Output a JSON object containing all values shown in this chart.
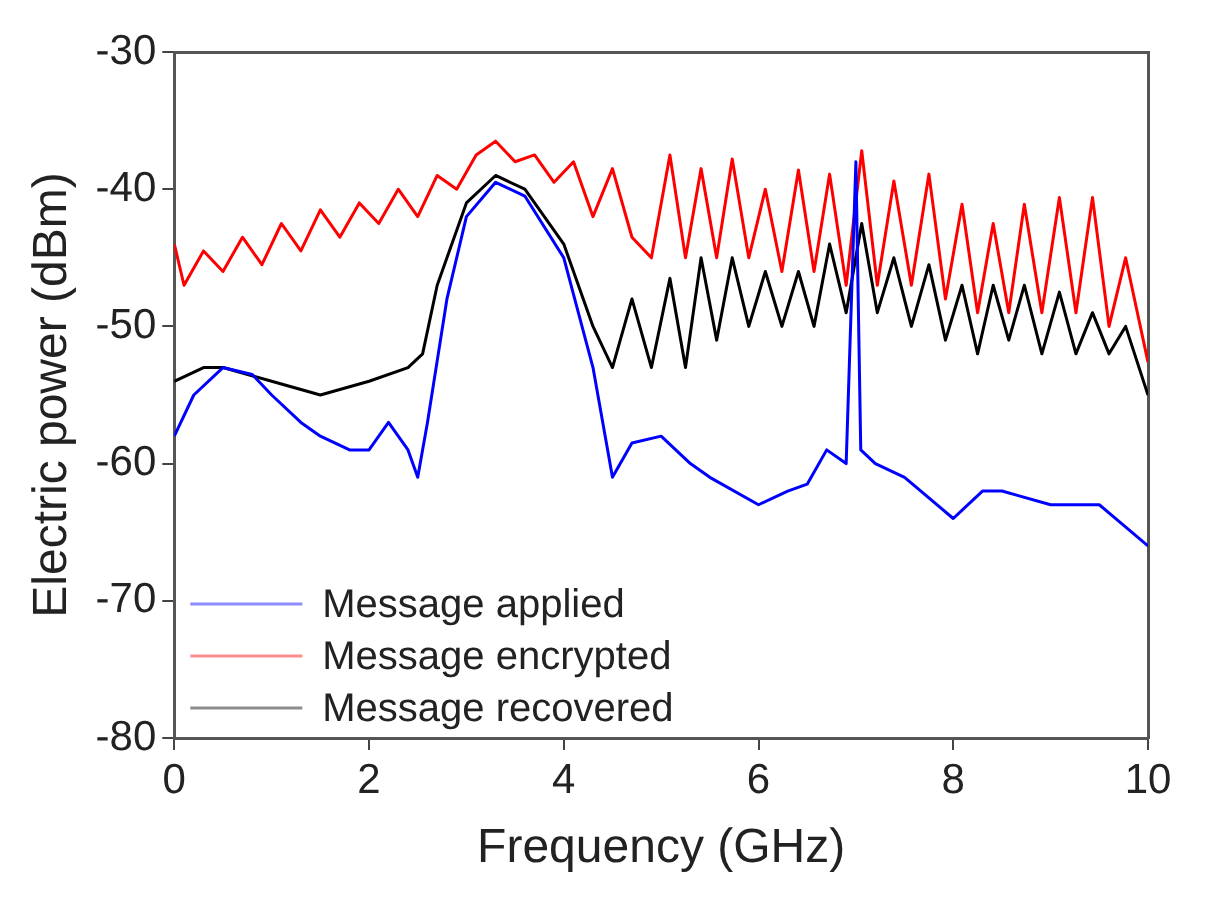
{
  "chart_data": {
    "type": "line",
    "xlabel": "Frequency (GHz)",
    "ylabel": "Electric power (dBm)",
    "xlim": [
      0,
      10
    ],
    "ylim": [
      -80,
      -30
    ],
    "xticks": [
      0,
      2,
      4,
      6,
      8,
      10
    ],
    "yticks": [
      -80,
      -70,
      -60,
      -50,
      -40,
      -30
    ],
    "grid": false,
    "legend": "bottom left",
    "marker": "none",
    "line_style": "solid",
    "series": [
      {
        "name": "Message applied",
        "color": "#0000ff",
        "x": [
          0,
          0.2,
          0.5,
          0.8,
          1,
          1.3,
          1.5,
          1.8,
          2,
          2.2,
          2.4,
          2.5,
          2.6,
          2.8,
          3,
          3.3,
          3.6,
          4,
          4.3,
          4.5,
          4.7,
          5,
          5.3,
          5.5,
          6,
          6.3,
          6.5,
          6.7,
          6.9,
          7,
          7.05,
          7.2,
          7.5,
          8,
          8.3,
          8.5,
          9,
          9.5,
          10
        ],
        "values": [
          -58,
          -55,
          -53,
          -53.5,
          -55,
          -57,
          -58,
          -59,
          -59,
          -57,
          -59,
          -61,
          -57,
          -48,
          -42,
          -39.5,
          -40.5,
          -45,
          -53,
          -61,
          -58.5,
          -58,
          -60,
          -61,
          -63,
          -62,
          -61.5,
          -59,
          -60,
          -38,
          -59,
          -60,
          -61,
          -64,
          -62,
          -62,
          -63,
          -63,
          -66
        ]
      },
      {
        "name": "Message encrypted",
        "color": "#ff0000",
        "x": [
          0,
          0.1,
          0.3,
          0.5,
          0.7,
          0.9,
          1.1,
          1.3,
          1.5,
          1.7,
          1.9,
          2.1,
          2.3,
          2.5,
          2.7,
          2.9,
          3.1,
          3.3,
          3.5,
          3.7,
          3.9,
          4.1,
          4.3,
          4.5,
          4.7,
          4.9,
          5.09,
          5.25,
          5.41,
          5.57,
          5.73,
          5.9,
          6.07,
          6.24,
          6.41,
          6.57,
          6.73,
          6.9,
          7.06,
          7.22,
          7.39,
          7.57,
          7.75,
          7.92,
          8.09,
          8.25,
          8.41,
          8.57,
          8.73,
          8.91,
          9.09,
          9.26,
          9.43,
          9.6,
          9.77,
          10
        ],
        "values": [
          -44,
          -47,
          -44.5,
          -46,
          -43.5,
          -45.5,
          -42.5,
          -44.5,
          -41.5,
          -43.5,
          -41,
          -42.5,
          -40,
          -42,
          -39,
          -40,
          -37.5,
          -36.5,
          -38,
          -37.5,
          -39.5,
          -38,
          -42,
          -38.5,
          -43.5,
          -45,
          -37.5,
          -45,
          -38.5,
          -45,
          -37.8,
          -45,
          -40,
          -46,
          -38.6,
          -46,
          -38.9,
          -47,
          -37.2,
          -47,
          -39.4,
          -47,
          -38.9,
          -48,
          -41.1,
          -49,
          -42.5,
          -49,
          -41.1,
          -49,
          -40.6,
          -49,
          -40.6,
          -50,
          -45,
          -52.6
        ]
      },
      {
        "name": "Message recovered",
        "color": "#000000",
        "x": [
          0,
          0.3,
          0.5,
          1,
          1.5,
          2,
          2.4,
          2.55,
          2.7,
          3,
          3.3,
          3.6,
          4,
          4.3,
          4.5,
          4.7,
          4.9,
          5.09,
          5.25,
          5.41,
          5.57,
          5.73,
          5.9,
          6.07,
          6.24,
          6.41,
          6.57,
          6.73,
          6.9,
          7.06,
          7.22,
          7.39,
          7.57,
          7.75,
          7.92,
          8.09,
          8.25,
          8.41,
          8.57,
          8.73,
          8.91,
          9.09,
          9.26,
          9.43,
          9.6,
          9.77,
          10
        ],
        "values": [
          -54,
          -53,
          -53,
          -54,
          -55,
          -54,
          -53,
          -52,
          -47,
          -41,
          -39,
          -40,
          -44,
          -50,
          -53,
          -48,
          -53,
          -46.5,
          -53,
          -45,
          -51,
          -45,
          -50,
          -46,
          -50,
          -46,
          -50,
          -44,
          -49,
          -42.5,
          -49,
          -45,
          -50,
          -45.5,
          -51,
          -47,
          -52,
          -47,
          -51,
          -47,
          -52,
          -47.5,
          -52,
          -49,
          -52,
          -50,
          -55
        ]
      }
    ]
  }
}
